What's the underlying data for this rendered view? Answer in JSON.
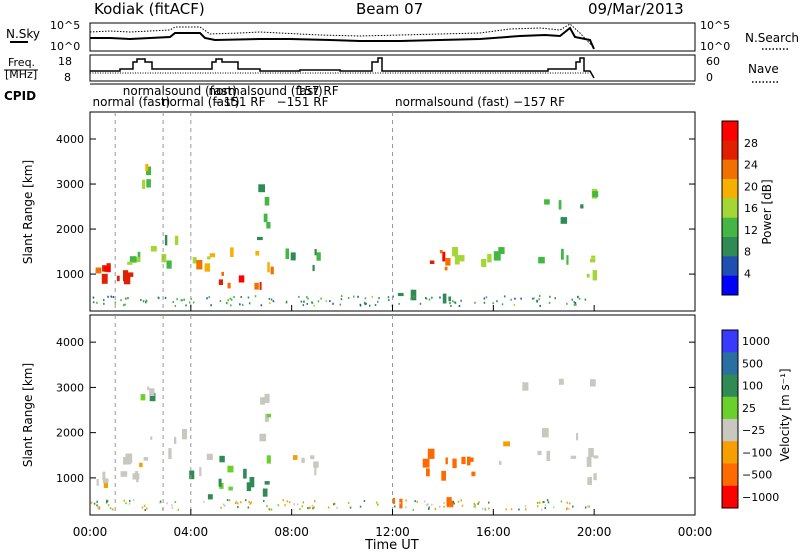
{
  "header": {
    "site": "Kodiak (fitACF)",
    "beam": "Beam 07",
    "date": "09/Mar/2013"
  },
  "noise_panel": {
    "left_label": "N.Sky",
    "right_label": "N.Search",
    "left_ticks": [
      "10^5",
      "10^0"
    ],
    "right_ticks": [
      "10^5",
      "10^0"
    ]
  },
  "freq_panel": {
    "left_label_1": "Freq.",
    "left_label_2": "[MHz]",
    "right_label": "Nave",
    "left_ticks": [
      "18",
      "8"
    ],
    "right_ticks": [
      "60",
      "0"
    ]
  },
  "cpid": {
    "label": "CPID",
    "segments": [
      {
        "text": "normal (fast)",
        "row": 1,
        "start_h": 0.1
      },
      {
        "text": "normalsound (fast)",
        "row": 0,
        "start_h": 1.3
      },
      {
        "text": "normal (fast)",
        "row": 1,
        "start_h": 2.85
      },
      {
        "text": "normalsound (fast)",
        "row": 0,
        "start_h": 4.7
      },
      {
        "text": "−151 RF",
        "row": 1,
        "start_h": 4.9
      },
      {
        "text": "157 RF",
        "row": 0,
        "start_h": 8.2
      },
      {
        "text": "−151 RF",
        "row": 1,
        "start_h": 7.4
      },
      {
        "text": "normalsound (fast) −157 RF",
        "row": 1,
        "start_h": 12.1
      }
    ]
  },
  "power_panel": {
    "ylabel": "Slant Range [km]",
    "yticks": [
      "4000",
      "3000",
      "2000",
      "1000"
    ],
    "colorbar_label": "Power [dB]",
    "colorbar_ticks": [
      "28",
      "24",
      "20",
      "16",
      "12",
      "8",
      "4"
    ]
  },
  "velocity_panel": {
    "ylabel": "Slant Range [km]",
    "yticks": [
      "4000",
      "3000",
      "2000",
      "1000"
    ],
    "colorbar_label": "Velocity [m s⁻¹]",
    "colorbar_ticks": [
      "1000",
      "500",
      "100",
      "25",
      "−25",
      "−100",
      "−500",
      "−1000"
    ]
  },
  "xaxis": {
    "label": "Time UT",
    "ticks": [
      "00:00",
      "04:00",
      "08:00",
      "12:00",
      "16:00",
      "20:00",
      "00:00"
    ]
  },
  "chart_data": {
    "type": "heatmap",
    "title": "Kodiak (fitACF) Beam 07 09/Mar/2013",
    "xlabel": "Time UT",
    "ylabel": "Slant Range [km]",
    "xlim_hours": [
      0,
      24
    ],
    "ylim_km": [
      180,
      4600
    ],
    "data_end_hour": 20,
    "power_colorscale": {
      "label": "Power [dB]",
      "range": [
        0,
        30
      ],
      "colors": [
        "#0000ff",
        "#1f4fb0",
        "#2f8a55",
        "#43b643",
        "#a4d635",
        "#f5b000",
        "#f07000",
        "#e02000",
        "#ff0000"
      ]
    },
    "velocity_colorscale": {
      "label": "Velocity [m s⁻¹]",
      "levels": [
        1000,
        500,
        100,
        25,
        -25,
        -100,
        -500,
        -1000
      ],
      "colors": [
        "#3a3aff",
        "#2a6fa0",
        "#2f8a55",
        "#6ad12c",
        "#c8c8c0",
        "#f5a000",
        "#ff6a00",
        "#ff0000"
      ]
    },
    "dashed_time_markers_h": [
      1.0,
      2.9,
      4.0,
      12.0
    ],
    "echo_regions": [
      {
        "t": [
          0.0,
          2.0
        ],
        "r": [
          750,
          1450
        ],
        "power": 24,
        "vel": 0
      },
      {
        "t": [
          0.0,
          1.3
        ],
        "r": [
          850,
          1150
        ],
        "power": 28,
        "vel": 0
      },
      {
        "t": [
          1.3,
          2.0
        ],
        "r": [
          1200,
          1500
        ],
        "power": 16,
        "vel": 0
      },
      {
        "t": [
          1.9,
          2.5
        ],
        "r": [
          2700,
          3400
        ],
        "power": 14,
        "vel": 40
      },
      {
        "t": [
          2.0,
          3.7
        ],
        "r": [
          1200,
          2000
        ],
        "power": 12,
        "vel": 0
      },
      {
        "t": [
          3.7,
          5.3
        ],
        "r": [
          500,
          1500
        ],
        "power": 18,
        "vel": 40
      },
      {
        "t": [
          4.6,
          7.0
        ],
        "r": [
          650,
          900
        ],
        "power": 26,
        "vel": 60
      },
      {
        "t": [
          5.0,
          7.2
        ],
        "r": [
          900,
          1700
        ],
        "power": 20,
        "vel": 60
      },
      {
        "t": [
          6.3,
          7.5
        ],
        "r": [
          1600,
          3000
        ],
        "power": 10,
        "vel": 0
      },
      {
        "t": [
          7.5,
          9.0
        ],
        "r": [
          1000,
          1500
        ],
        "power": 8,
        "vel": 0
      },
      {
        "t": [
          12.0,
          14.5
        ],
        "r": [
          420,
          560
        ],
        "power": 6,
        "vel": -120
      },
      {
        "t": [
          13.0,
          14.4
        ],
        "r": [
          1000,
          1550
        ],
        "power": 26,
        "vel": -200
      },
      {
        "t": [
          14.3,
          15.8
        ],
        "r": [
          1050,
          1500
        ],
        "power": 16,
        "vel": -150
      },
      {
        "t": [
          16.0,
          20.0
        ],
        "r": [
          1200,
          3200
        ],
        "power": 12,
        "vel": 0
      },
      {
        "t": [
          19.6,
          20.0
        ],
        "r": [
          900,
          1600
        ],
        "power": 18,
        "vel": 0
      }
    ]
  }
}
